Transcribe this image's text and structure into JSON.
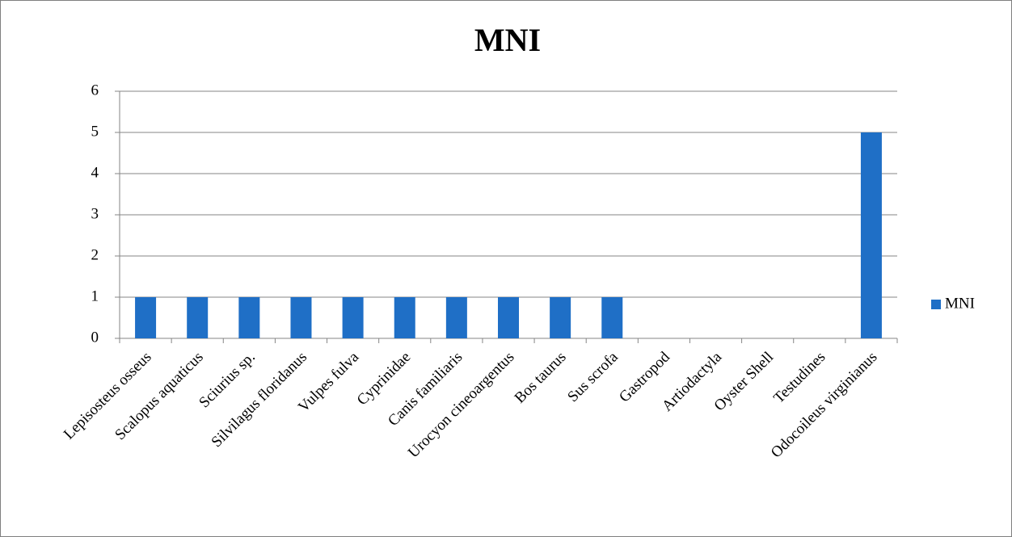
{
  "chart_data": {
    "type": "bar",
    "title": "MNI",
    "categories": [
      "Lepisosteus osseus",
      "Scalopus aquaticus",
      "Sciurius sp.",
      "Silvilagus floridanus",
      "Vulpes fulva",
      "Cyprinidae",
      "Canis familiaris",
      "Urocyon cineoargentus",
      "Bos taurus",
      "Sus scrofa",
      "Gastropod",
      "Artiodactyla",
      "Oyster Shell",
      "Testudines",
      "Odocoileus virginianus"
    ],
    "series": [
      {
        "name": "MNI",
        "color": "#1f6fc6",
        "values": [
          1,
          1,
          1,
          1,
          1,
          1,
          1,
          1,
          1,
          1,
          0,
          0,
          0,
          0,
          5
        ]
      }
    ],
    "ylim": [
      0,
      6
    ],
    "yticks": [
      0,
      1,
      2,
      3,
      4,
      5,
      6
    ],
    "grid": true,
    "legend": "right"
  }
}
